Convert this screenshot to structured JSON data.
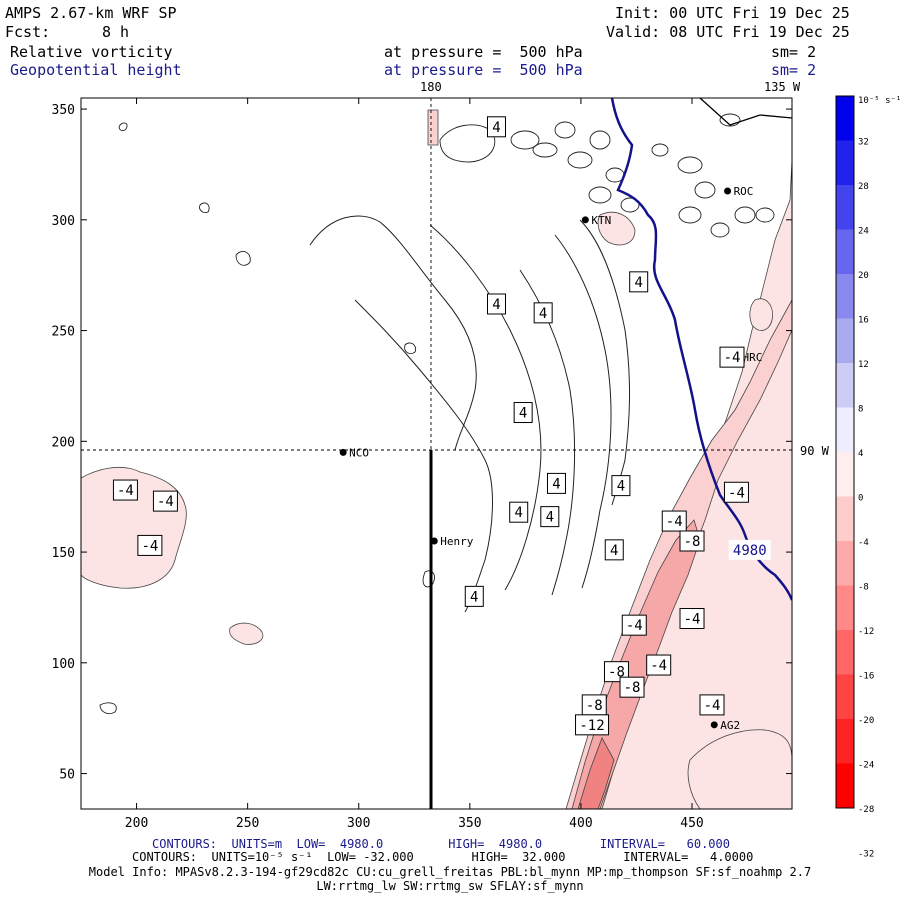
{
  "header": {
    "model": "AMPS 2.67-km WRF SP",
    "init": "Init: 00 UTC Fri 19 Dec 25",
    "fcst_label": "Fcst:",
    "fcst_value": "8 h",
    "valid": "Valid: 08 UTC Fri 19 Dec 25",
    "field1": "Relative vorticity",
    "field1_pressure": "at pressure =  500 hPa",
    "field1_sm": "sm= 2",
    "field2": "Geopotential height",
    "field2_pressure": "at pressure =  500 hPa",
    "field2_sm": "sm= 2"
  },
  "map_labels": {
    "top_180": "180",
    "top_135w": "135 W",
    "right_90w": "90 W"
  },
  "stations": [
    {
      "name": "NCO",
      "x": 293,
      "y": 195
    },
    {
      "name": "Henry",
      "x": 334,
      "y": 155
    },
    {
      "name": "KTN",
      "x": 402,
      "y": 300
    },
    {
      "name": "ROC",
      "x": 466,
      "y": 313
    },
    {
      "name": "HRC",
      "x": 470,
      "y": 238
    },
    {
      "name": "AG2",
      "x": 460,
      "y": 72
    }
  ],
  "contour_labels": [
    {
      "text": "4",
      "x": 362,
      "y": 342
    },
    {
      "text": "4",
      "x": 362,
      "y": 262
    },
    {
      "text": "4",
      "x": 374,
      "y": 213
    },
    {
      "text": "4",
      "x": 372,
      "y": 168
    },
    {
      "text": "4",
      "x": 352,
      "y": 130
    },
    {
      "text": "4",
      "x": 383,
      "y": 258
    },
    {
      "text": "4",
      "x": 426,
      "y": 272
    },
    {
      "text": "4",
      "x": 389,
      "y": 181
    },
    {
      "text": "4",
      "x": 386,
      "y": 166
    },
    {
      "text": "4",
      "x": 418,
      "y": 180
    },
    {
      "text": "4",
      "x": 415,
      "y": 151
    },
    {
      "text": "-4",
      "x": 195,
      "y": 178
    },
    {
      "text": "-4",
      "x": 213,
      "y": 173
    },
    {
      "text": "-4",
      "x": 206,
      "y": 153
    },
    {
      "text": "-4",
      "x": 442,
      "y": 164
    },
    {
      "text": "-4",
      "x": 468,
      "y": 238
    },
    {
      "text": "-4",
      "x": 470,
      "y": 177
    },
    {
      "text": "-8",
      "x": 450,
      "y": 155
    },
    {
      "text": "-4",
      "x": 450,
      "y": 120
    },
    {
      "text": "-4",
      "x": 424,
      "y": 117
    },
    {
      "text": "-4",
      "x": 435,
      "y": 99
    },
    {
      "text": "-8",
      "x": 416,
      "y": 96
    },
    {
      "text": "-8",
      "x": 423,
      "y": 89
    },
    {
      "text": "-8",
      "x": 406,
      "y": 81
    },
    {
      "text": "-12",
      "x": 405,
      "y": 72
    },
    {
      "text": "-4",
      "x": 459,
      "y": 81
    },
    {
      "text": "4980",
      "x": 476,
      "y": 151
    }
  ],
  "colorbar": {
    "unit": "10⁻⁵ s⁻¹",
    "ticks": [
      "32",
      "28",
      "24",
      "20",
      "16",
      "12",
      "8",
      "4",
      "0",
      "-4",
      "-8",
      "-12",
      "-16",
      "-20",
      "-24",
      "-28",
      "-32"
    ],
    "colors": [
      "#0000ee",
      "#2222ee",
      "#4444ee",
      "#6666ee",
      "#8888ee",
      "#aaaaee",
      "#ccccf4",
      "#eeeeff",
      "#ffeeee",
      "#ffcccc",
      "#ffaaaa",
      "#ff8888",
      "#ff6666",
      "#ff4444",
      "#ff2222",
      "#ff0000"
    ]
  },
  "chart_data": {
    "type": "contour map",
    "x_ticks": [
      200,
      250,
      300,
      350,
      400,
      450
    ],
    "y_ticks": [
      50,
      100,
      150,
      200,
      250,
      300,
      350
    ],
    "xlim": [
      175,
      495
    ],
    "ylim": [
      34,
      355
    ],
    "grid": false,
    "vertical_line_x": 333,
    "horizontal_line_y": 195
  },
  "footer": {
    "line1": "CONTOURS:  UNITS=m  LOW=  4980.0         HIGH=  4980.0        INTERVAL=   60.000",
    "line2": "CONTOURS:  UNITS=10⁻⁵ s⁻¹  LOW= -32.000        HIGH=  32.000        INTERVAL=   4.0000",
    "line3": "Model Info: MPASv8.2.3-194-gf29cd82c CU:cu_grell_freitas PBL:bl_mynn MP:mp_thompson SF:sf_noahmp 2.7",
    "line4": "LW:rrtmg_lw SW:rrtmg_sw SFLAY:sf_mynn"
  }
}
